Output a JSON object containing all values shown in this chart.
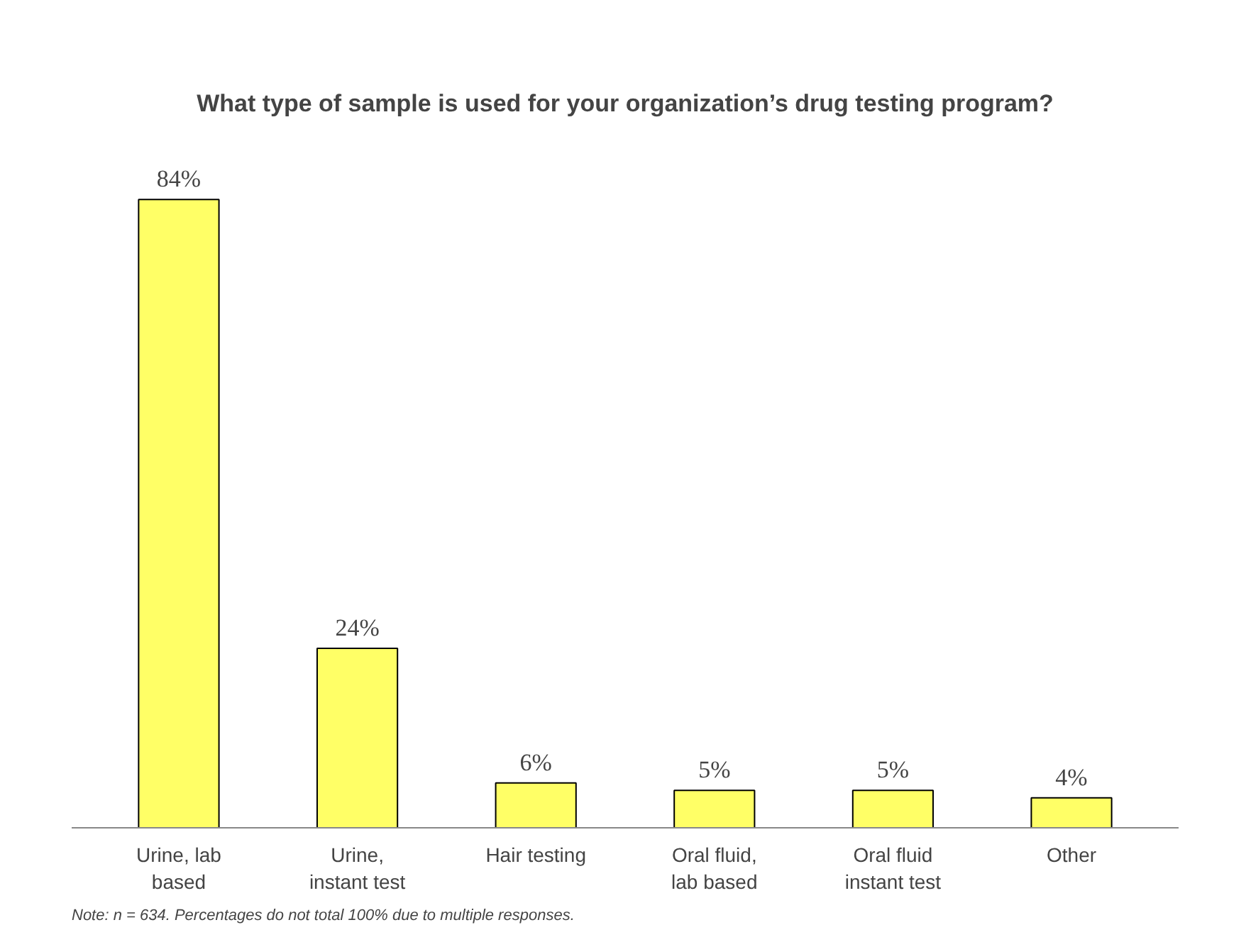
{
  "chart_data": {
    "type": "bar",
    "title": "What type of sample is used for your organization’s drug testing program?",
    "categories": [
      "Urine, lab based",
      "Urine, instant test",
      "Hair testing",
      "Oral fluid, lab based",
      "Oral fluid instant test",
      "Other"
    ],
    "values": [
      84,
      24,
      6,
      5,
      5,
      4
    ],
    "value_labels": [
      "84%",
      "24%",
      "6%",
      "5%",
      "5%",
      "4%"
    ],
    "color": "#ffff66",
    "annotations": [
      "Note: n = 634. Percentages do not total 100% due to multiple responses."
    ]
  }
}
